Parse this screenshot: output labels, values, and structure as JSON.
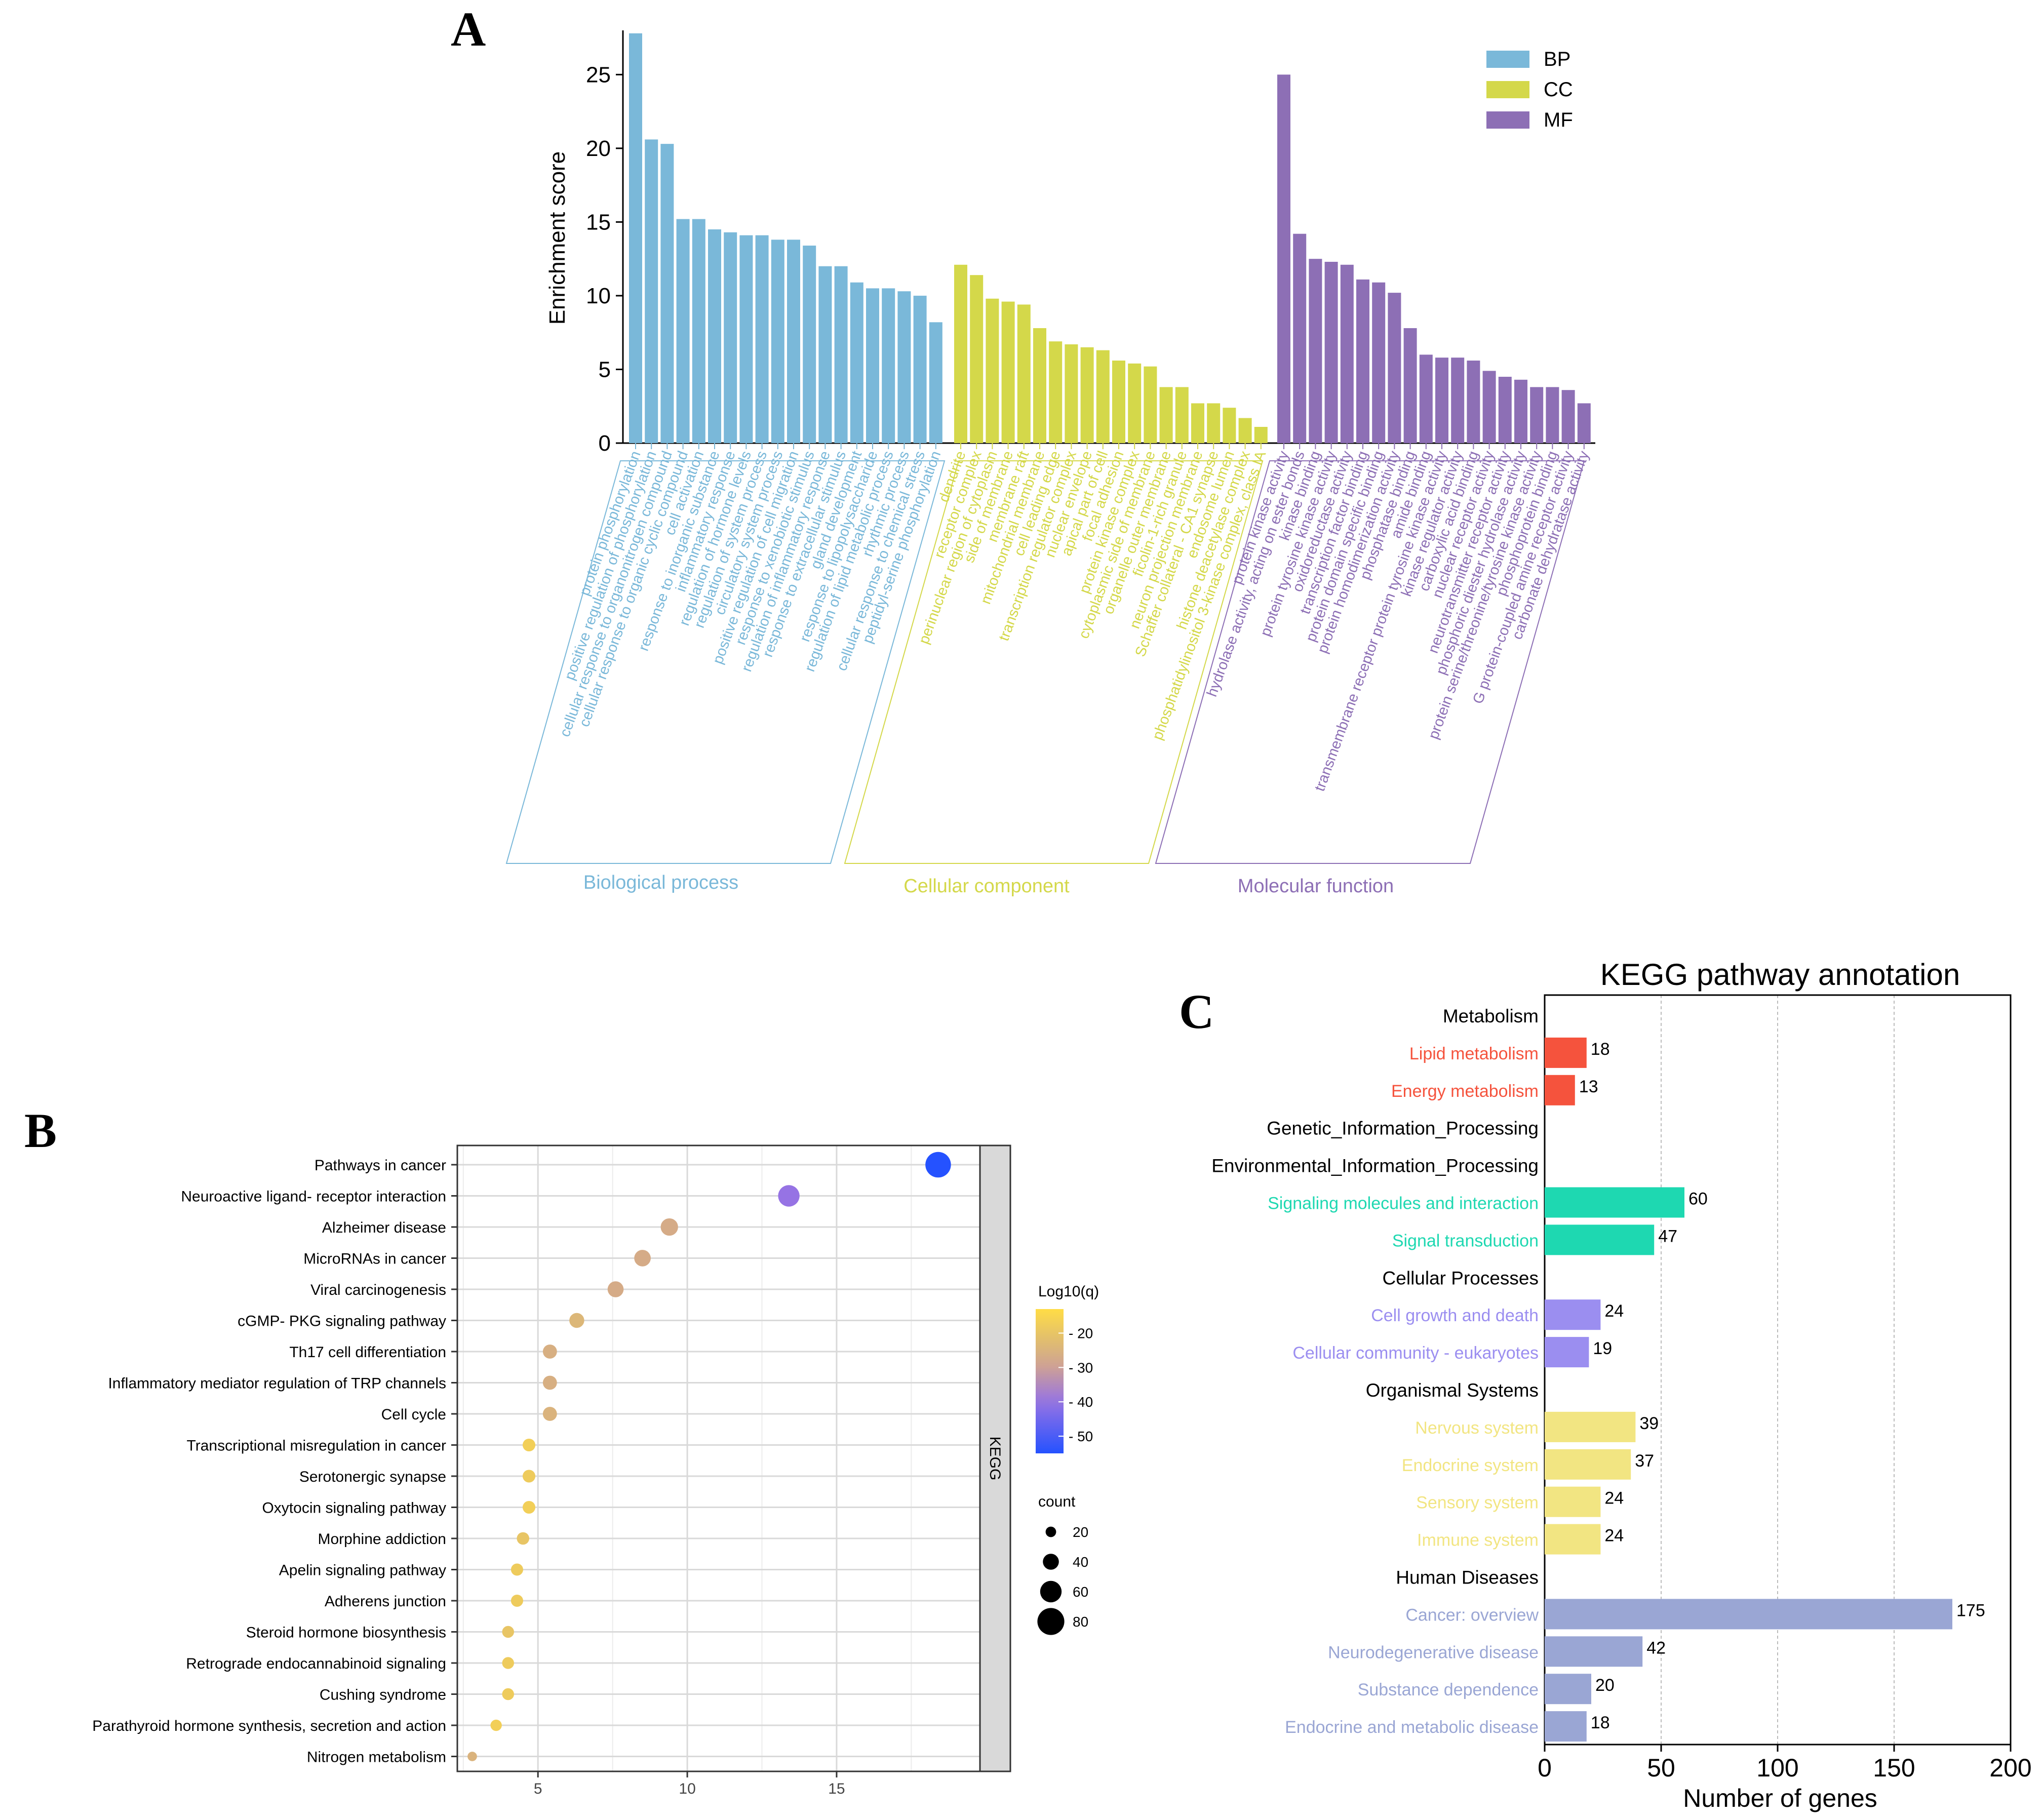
{
  "chart_data": [
    {
      "panel": "A",
      "type": "bar",
      "xlabel": "",
      "ylabel": "Enrichment score",
      "ylim": [
        0,
        28
      ],
      "yticks": [
        0,
        5,
        10,
        15,
        20,
        25
      ],
      "legend": {
        "placement": "top-right",
        "entries": [
          {
            "name": "BP",
            "color": "#7ab8d9"
          },
          {
            "name": "CC",
            "color": "#d4d84a"
          },
          {
            "name": "MF",
            "color": "#8d6fb5"
          }
        ]
      },
      "groups": [
        {
          "key": "BP",
          "label": "Biological process",
          "color": "#7ab8d9",
          "categories": [
            "protein phosphorylation",
            "positive regulation of phosphorylation",
            "cellular response to organonitrogen compound",
            "cellular response to organic cyclic compound",
            "cell activation",
            "response to inorganic substance",
            "inflammatory response",
            "regulation of hormone levels",
            "regulation of system process",
            "circulatory system process",
            "positive regulation of cell migration",
            "response to xenobiotic stimulus",
            "regulation of inflammatory response",
            "response to extracellular stimulus",
            "gland development",
            "response to lipopolysaccharide",
            "regulation of lipid metabolic process",
            "rhythmic process",
            "cellular response to chemical stress",
            "peptidyl-serine phosphorylation"
          ],
          "values": [
            27.8,
            20.6,
            20.3,
            15.2,
            15.2,
            14.5,
            14.3,
            14.1,
            14.1,
            13.8,
            13.8,
            13.4,
            12.0,
            12.0,
            10.9,
            10.5,
            10.5,
            10.3,
            10.0,
            8.2
          ]
        },
        {
          "key": "CC",
          "label": "Cellular component",
          "color": "#d4d84a",
          "categories": [
            "dendrite",
            "receptor complex",
            "perinuclear region of cytoplasm",
            "side of membrane",
            "membrane raft",
            "mitochondrial membrane",
            "cell leading edge",
            "transcription regulator complex",
            "nuclear envelope",
            "apical part of cell",
            "focal adhesion",
            "protein kinase complex",
            "cytoplasmic side of membrane",
            "organelle outer membrane",
            "ficolin-1-rich granule",
            "neuron projection membrane",
            "Schaffer collateral - CA1 synapse",
            "endosome lumen",
            "histone deacetylase complex",
            "phosphatidylinositol 3-kinase complex, class IA"
          ],
          "values": [
            12.1,
            11.4,
            9.8,
            9.6,
            9.4,
            7.8,
            6.9,
            6.7,
            6.5,
            6.3,
            5.6,
            5.4,
            5.2,
            3.8,
            3.8,
            2.7,
            2.7,
            2.4,
            1.7,
            1.1
          ]
        },
        {
          "key": "MF",
          "label": "Molecular function",
          "color": "#8d6fb5",
          "categories": [
            "protein kinase activity",
            "hydrolase activity, acting on ester bonds",
            "kinase binding",
            "protein tyrosine kinase activity",
            "oxidoreductase activity",
            "transcription factor binding",
            "protein domain specific binding",
            "protein homodimerization activity",
            "phosphatase binding",
            "amide binding",
            "transmembrane receptor protein tyrosine kinase activity",
            "kinase regulator activity",
            "carboxylic acid binding",
            "nuclear receptor activity",
            "neurotransmitter receptor activity",
            "phosphoric diester hydrolase activity",
            "protein serine/threonine/tyrosine kinase activity",
            "phosphoprotein binding",
            "G protein-coupled amine receptor activity",
            "carbonate dehydratase activity"
          ],
          "values": [
            25.0,
            14.2,
            12.5,
            12.3,
            12.1,
            11.1,
            10.9,
            10.2,
            7.8,
            6.0,
            5.8,
            5.8,
            5.6,
            4.9,
            4.5,
            4.3,
            3.8,
            3.8,
            3.6,
            2.7
          ]
        }
      ]
    },
    {
      "panel": "B",
      "type": "scatter",
      "facet_label": "KEGG",
      "xlim": [
        2.3,
        19.8
      ],
      "xticks": [
        5,
        10,
        15
      ],
      "categories": [
        "Pathways in cancer",
        "Neuroactive ligand- receptor interaction",
        "Alzheimer disease",
        "MicroRNAs in cancer",
        "Viral carcinogenesis",
        "cGMP- PKG signaling pathway",
        "Th17 cell differentiation",
        "Inflammatory mediator regulation of TRP channels",
        "Cell cycle",
        "Transcriptional misregulation in cancer",
        "Serotonergic synapse",
        "Oxytocin signaling pathway",
        "Morphine addiction",
        "Apelin signaling pathway",
        "Adherens junction",
        "Steroid hormone biosynthesis",
        "Retrograde endocannabinoid signaling",
        "Cushing syndrome",
        "Parathyroid hormone synthesis, secretion and action",
        "Nitrogen metabolism"
      ],
      "x": [
        18.4,
        13.4,
        9.4,
        8.5,
        7.6,
        6.3,
        5.4,
        5.4,
        5.4,
        4.7,
        4.7,
        4.7,
        4.5,
        4.3,
        4.3,
        4.0,
        4.0,
        4.0,
        3.6,
        2.8
      ],
      "log10q": [
        -55,
        -40,
        -27,
        -27,
        -27,
        -24,
        -26,
        -26,
        -25,
        -17,
        -18,
        -17,
        -20,
        -18,
        -18,
        -20,
        -18,
        -18,
        -17,
        -25
      ],
      "count": [
        75,
        60,
        45,
        42,
        40,
        36,
        33,
        33,
        33,
        28,
        28,
        28,
        27,
        26,
        26,
        25,
        25,
        25,
        23,
        16
      ],
      "color_legend": {
        "title": "Log10(q)",
        "ticks": [
          "- 20",
          "- 30",
          "- 40",
          "- 50"
        ],
        "tick_values": [
          -20,
          -30,
          -40,
          -50
        ],
        "range": [
          -55,
          -13
        ]
      },
      "size_legend": {
        "title": "count",
        "labels": [
          "20",
          "40",
          "60",
          "80"
        ],
        "values": [
          20,
          40,
          60,
          80
        ]
      }
    },
    {
      "panel": "C",
      "type": "bar",
      "orientation": "horizontal",
      "title": "KEGG pathway annotation",
      "xlabel": "Number of genes",
      "xlim": [
        0,
        200
      ],
      "xticks": [
        0,
        50,
        100,
        150,
        200
      ],
      "rows": [
        {
          "label": "Metabolism",
          "header": true
        },
        {
          "label": "Lipid metabolism",
          "value": 18,
          "color": "#f5533d"
        },
        {
          "label": "Energy metabolism",
          "value": 13,
          "color": "#f5533d"
        },
        {
          "label": "Genetic_Information_Processing",
          "header": true
        },
        {
          "label": "Environmental_Information_Processing",
          "header": true
        },
        {
          "label": "Signaling molecules and interaction",
          "value": 60,
          "color": "#1ed8b1"
        },
        {
          "label": "Signal transduction",
          "value": 47,
          "color": "#1ed8b1"
        },
        {
          "label": "Cellular Processes",
          "header": true
        },
        {
          "label": "Cell growth and death",
          "value": 24,
          "color": "#9b8ef0"
        },
        {
          "label": "Cellular community - eukaryotes",
          "value": 19,
          "color": "#9b8ef0"
        },
        {
          "label": "Organismal Systems",
          "header": true
        },
        {
          "label": "Nervous system",
          "value": 39,
          "color": "#f2e582"
        },
        {
          "label": "Endocrine system",
          "value": 37,
          "color": "#f2e582"
        },
        {
          "label": "Sensory system",
          "value": 24,
          "color": "#f2e582"
        },
        {
          "label": "Immune system",
          "value": 24,
          "color": "#f2e582"
        },
        {
          "label": "Human Diseases",
          "header": true
        },
        {
          "label": "Cancer: overview",
          "value": 175,
          "color": "#9aa6d4"
        },
        {
          "label": "Neurodegenerative disease",
          "value": 42,
          "color": "#9aa6d4"
        },
        {
          "label": "Substance dependence",
          "value": 20,
          "color": "#9aa6d4"
        },
        {
          "label": "Endocrine and metabolic disease",
          "value": 18,
          "color": "#9aa6d4"
        }
      ]
    }
  ]
}
